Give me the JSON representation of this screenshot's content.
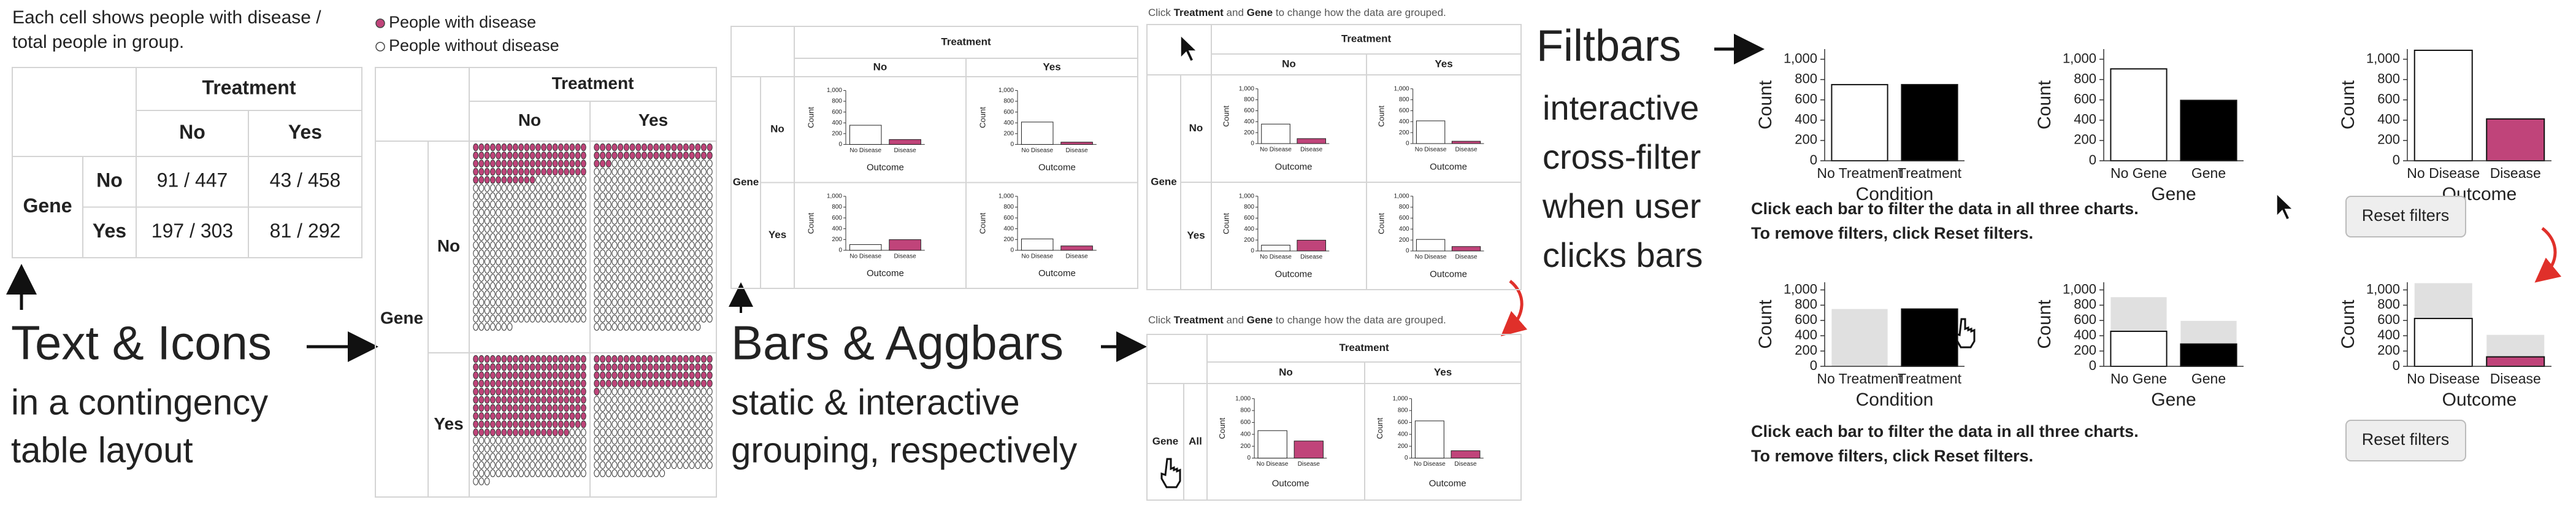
{
  "text_icons": {
    "note": [
      "Each cell shows people with disease /",
      "total people in group."
    ],
    "caption": "Text & Icons",
    "subcaption": [
      "in a contingency",
      "table layout"
    ]
  },
  "contingency": {
    "col_header": "Treatment",
    "row_header": "Gene",
    "cols": [
      "No",
      "Yes"
    ],
    "rows": [
      "No",
      "Yes"
    ],
    "cells": [
      [
        {
          "label": "91 / 447",
          "disease": 91,
          "total": 447
        },
        {
          "label": "43 / 458",
          "disease": 43,
          "total": 458
        }
      ],
      [
        {
          "label": "197 / 303",
          "disease": 197,
          "total": 303
        },
        {
          "label": "81 / 292",
          "disease": 81,
          "total": 292
        }
      ]
    ]
  },
  "icons": {
    "legend": [
      "People with disease",
      "People without disease"
    ],
    "disease_color": "#c0447a"
  },
  "mini_chart": {
    "ylabel": "Count",
    "xlabel": "Outcome",
    "categories": [
      "No Disease",
      "Disease"
    ],
    "colors": [
      "#ffffff",
      "#c0447a"
    ],
    "ylim": [
      0,
      1000
    ],
    "yticks": [
      0,
      200,
      400,
      600,
      800,
      {
        "value": 1000,
        "label": "1,000"
      }
    ]
  },
  "bars": {
    "caption": "Bars & Aggbars",
    "subcaption": [
      "static & interactive",
      "grouping, respectively"
    ],
    "cells": [
      [
        [
          356,
          91
        ],
        [
          415,
          43
        ]
      ],
      [
        [
          106,
          197
        ],
        [
          211,
          81
        ]
      ]
    ]
  },
  "aggbars": {
    "note": [
      "Click ",
      "Treatment",
      " and ",
      "Gene",
      " to change how the data are grouped."
    ],
    "all_label": "All",
    "grouped": [
      [
        462,
        288
      ],
      [
        626,
        124
      ]
    ]
  },
  "filtbars": {
    "title": "Filtbars",
    "subcaption": [
      "interactive",
      "cross-filter",
      "when user",
      "clicks bars"
    ],
    "ylabel": "Count",
    "ylim": [
      0,
      1100
    ],
    "yticks": [
      0,
      200,
      400,
      600,
      800,
      {
        "value": 1000,
        "label": "1,000"
      }
    ],
    "instructions": [
      "Click each bar to filter the data in all three charts.",
      "To remove filters, click Reset filters."
    ],
    "button": "Reset filters",
    "ghost_color": "#e0e0e0",
    "charts": [
      {
        "xlabel": "Condition",
        "categories": [
          "No Treatment",
          "Treatment"
        ],
        "colors": [
          "#ffffff",
          "#000000"
        ]
      },
      {
        "xlabel": "Gene",
        "categories": [
          "No Gene",
          "Gene"
        ],
        "colors": [
          "#ffffff",
          "#000000"
        ]
      },
      {
        "xlabel": "Outcome",
        "categories": [
          "No Disease",
          "Disease"
        ],
        "colors": [
          "#ffffff",
          "#c0447a"
        ]
      }
    ],
    "unfiltered": [
      [
        750,
        750
      ],
      [
        905,
        595
      ],
      [
        1088,
        412
      ]
    ],
    "filtered": [
      [
        0,
        750
      ],
      [
        458,
        292
      ],
      [
        626,
        124
      ]
    ]
  }
}
